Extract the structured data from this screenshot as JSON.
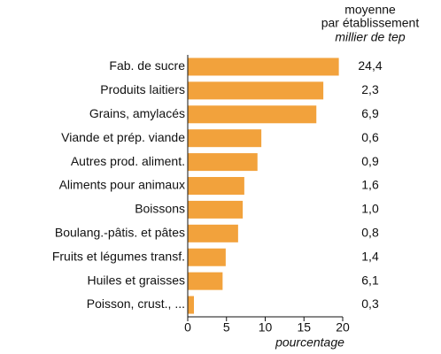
{
  "chart_data": {
    "type": "bar",
    "orientation": "horizontal",
    "categories": [
      "Fab. de sucre",
      "Produits laitiers",
      "Grains, amylacés",
      "Viande et prép. viande",
      "Autres prod. aliment.",
      "Aliments pour animaux",
      "Boissons",
      "Boulang.-pâtis. et pâtes",
      "Fruits et légumes transf.",
      "Huiles et graisses",
      "Poisson, crust., ..."
    ],
    "values": [
      19.5,
      17.5,
      16.6,
      9.5,
      9.0,
      7.3,
      7.1,
      6.5,
      4.9,
      4.5,
      0.8
    ],
    "color": "#f2a23c",
    "xlabel": "pourcentage",
    "xlim": [
      0,
      20
    ],
    "xticks": [
      0,
      5,
      10,
      15,
      20
    ],
    "side_column": {
      "header": [
        "moyenne",
        "par établissement"
      ],
      "unit": "millier de tep",
      "values": [
        "24,4",
        "2,3",
        "6,9",
        "0,6",
        "0,9",
        "1,6",
        "1,0",
        "0,8",
        "1,4",
        "6,1",
        "0,3"
      ]
    }
  }
}
